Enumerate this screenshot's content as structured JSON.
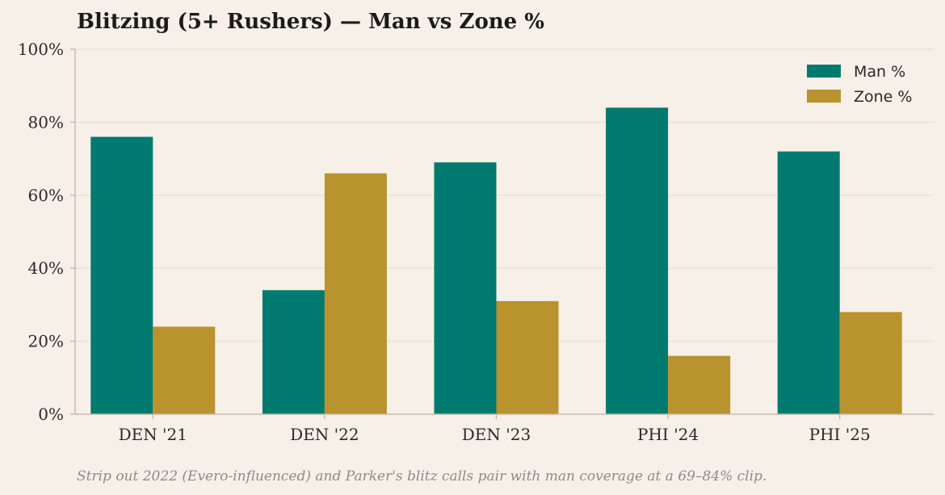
{
  "chart_data": {
    "type": "bar",
    "title": "Blitzing (5+ Rushers) — Man vs Zone %",
    "categories": [
      "DEN '21",
      "DEN '22",
      "DEN '23",
      "PHI '24",
      "PHI '25"
    ],
    "series": [
      {
        "name": "Man %",
        "color": "#007a6e",
        "values": [
          76,
          34,
          69,
          84,
          72
        ]
      },
      {
        "name": "Zone %",
        "color": "#b8932e",
        "values": [
          24,
          66,
          31,
          16,
          28
        ]
      }
    ],
    "ylim": [
      0,
      100
    ],
    "yticks": [
      0,
      20,
      40,
      60,
      80,
      100
    ],
    "ytick_labels": [
      "0%",
      "20%",
      "40%",
      "60%",
      "80%",
      "100%"
    ],
    "xlabel": "",
    "ylabel": "",
    "grid": true,
    "legend_position": "top-right",
    "caption": "Strip out 2022 (Evero-influenced) and Parker's blitz calls pair with man coverage at a 69–84% clip."
  }
}
